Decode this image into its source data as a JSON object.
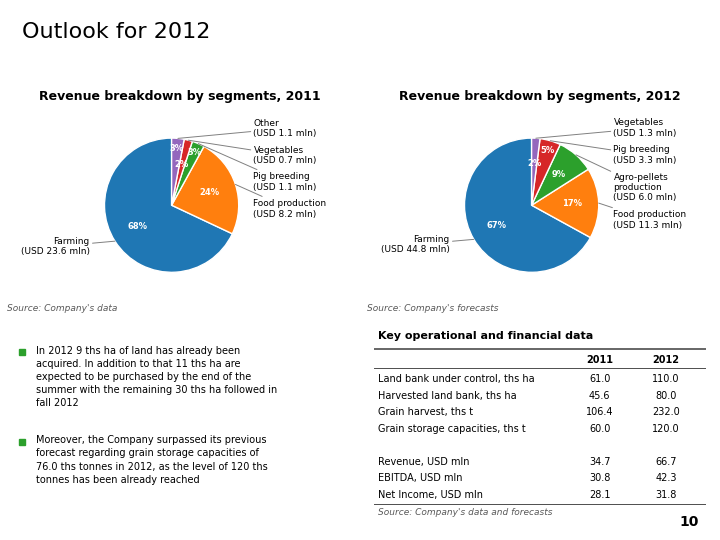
{
  "title": "Outlook for 2012",
  "annotations": [
    "In 2012 9 ths ha of land has already been\nacquired. In addition to that 11 ths ha are\nexpected to be purchased by the end of the\nsummer with the remaining 30 ths ha followed in\nfall 2012",
    "Moreover, the Company surpassed its previous\nforecast regarding grain storage capacities of\n76.0 ths tonnes in 2012, as the level of 120 ths\ntonnes has been already reached",
    "10"
  ],
  "chart_data": [
    {
      "type": "pie",
      "title": "Revenue breakdown by segments, 2011",
      "categories": [
        "Farming\n(USD 23.6 mln)",
        "Food production\n(USD 8.2 mln)",
        "Pig breeding\n(USD 1.1 mln)",
        "Vegetables\n(USD 0.7 mln)",
        "Other\n(USD 1.1 mln)"
      ],
      "values": [
        68,
        24,
        3,
        2,
        3
      ],
      "value_labels": [
        "68%",
        "24%",
        "3%",
        "2%",
        "3%"
      ],
      "data_labels": true,
      "annotations": [
        "Source: Company's data"
      ]
    },
    {
      "type": "pie",
      "title": "Revenue breakdown by segments, 2012",
      "categories": [
        "Farming\n(USD 44.8 mln)",
        "Food production\n(USD 11.3 mln)",
        "Agro-pellets\nproduction\n(USD 6.0 mln)",
        "Pig breeding\n(USD 3.3 mln)",
        "Vegetables\n(USD 1.3 mln)"
      ],
      "values": [
        67,
        17,
        9,
        5,
        2
      ],
      "value_labels": [
        "67%",
        "17%",
        "9%",
        "5%",
        "2%"
      ],
      "data_labels": true,
      "annotations": [
        "Source: Company's forecasts"
      ]
    },
    {
      "type": "table",
      "title": "Key operational and financial data",
      "categories": [
        "Land bank under control, ths ha",
        "Harvested land bank, ths ha",
        "Grain harvest, ths t",
        "Grain storage capacities, ths t",
        null,
        "Revenue, USD mln",
        "EBITDA, USD mln",
        "Net Income, USD mln"
      ],
      "series": [
        {
          "name": "2011",
          "values": [
            61.0,
            45.6,
            106.4,
            60.0,
            null,
            34.7,
            30.8,
            28.1
          ]
        },
        {
          "name": "2012",
          "values": [
            110.0,
            80.0,
            232.0,
            120.0,
            null,
            66.7,
            42.3,
            31.8
          ]
        }
      ],
      "annotations": [
        "Source: Company's data and forecasts"
      ]
    }
  ]
}
